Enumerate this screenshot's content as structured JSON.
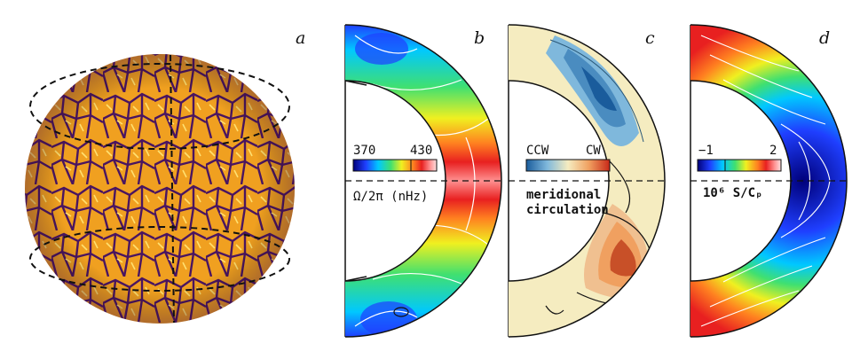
{
  "panels": {
    "a": {
      "letter": "a"
    },
    "b": {
      "letter": "b",
      "scale_min": "370",
      "scale_max": "430",
      "caption": "Ω/2π (nHz)"
    },
    "c": {
      "letter": "c",
      "scale_left": "CCW",
      "scale_right": "CW",
      "caption_line1": "meridional",
      "caption_line2": "circulation"
    },
    "d": {
      "letter": "d",
      "scale_min": "−1",
      "scale_max": "2",
      "caption": "10⁶ S/Cₚ"
    }
  },
  "colors": {
    "granule": "#f0a020",
    "lane": "#4a1560",
    "rainbow": [
      "#00007a",
      "#1f3fff",
      "#00c8ff",
      "#40e070",
      "#f0f020",
      "#ff8020",
      "#e82020",
      "#ff9090",
      "#ffe0e0"
    ],
    "diverging": [
      "#1a5c9c",
      "#7fb8dc",
      "#f5ecc0",
      "#f0a060",
      "#c82818"
    ]
  }
}
